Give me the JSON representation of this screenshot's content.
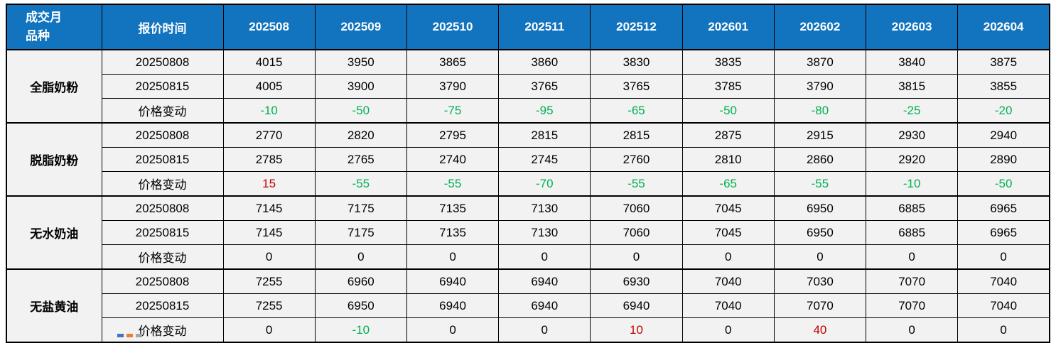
{
  "table": {
    "corner": {
      "line1": "成交月",
      "line2": "品种"
    },
    "quote_time_header": "报价时间",
    "months": [
      "202508",
      "202509",
      "202510",
      "202511",
      "202512",
      "202601",
      "202602",
      "202603",
      "202604"
    ],
    "change_row_label": "价格变动",
    "groups": [
      {
        "name": "全脂奶粉",
        "rows": [
          {
            "label": "20250808",
            "type": "price",
            "values": [
              "4015",
              "3950",
              "3865",
              "3860",
              "3830",
              "3835",
              "3870",
              "3840",
              "3875"
            ]
          },
          {
            "label": "20250815",
            "type": "price",
            "values": [
              "4005",
              "3900",
              "3790",
              "3765",
              "3765",
              "3785",
              "3790",
              "3815",
              "3855"
            ]
          },
          {
            "label": "价格变动",
            "type": "change",
            "values": [
              "-10",
              "-50",
              "-75",
              "-95",
              "-65",
              "-50",
              "-80",
              "-25",
              "-20"
            ]
          }
        ]
      },
      {
        "name": "脱脂奶粉",
        "rows": [
          {
            "label": "20250808",
            "type": "price",
            "values": [
              "2770",
              "2820",
              "2795",
              "2815",
              "2815",
              "2875",
              "2915",
              "2930",
              "2940"
            ]
          },
          {
            "label": "20250815",
            "type": "price",
            "values": [
              "2785",
              "2765",
              "2740",
              "2745",
              "2760",
              "2810",
              "2860",
              "2920",
              "2890"
            ]
          },
          {
            "label": "价格变动",
            "type": "change",
            "values": [
              "15",
              "-55",
              "-55",
              "-70",
              "-55",
              "-65",
              "-55",
              "-10",
              "-50"
            ]
          }
        ]
      },
      {
        "name": "无水奶油",
        "rows": [
          {
            "label": "20250808",
            "type": "price",
            "values": [
              "7145",
              "7175",
              "7135",
              "7130",
              "7060",
              "7045",
              "6950",
              "6885",
              "6965"
            ]
          },
          {
            "label": "20250815",
            "type": "price",
            "values": [
              "7145",
              "7175",
              "7135",
              "7130",
              "7060",
              "7045",
              "6950",
              "6885",
              "6965"
            ]
          },
          {
            "label": "价格变动",
            "type": "change",
            "values": [
              "0",
              "0",
              "0",
              "0",
              "0",
              "0",
              "0",
              "0",
              "0"
            ]
          }
        ]
      },
      {
        "name": "无盐黄油",
        "rows": [
          {
            "label": "20250808",
            "type": "price",
            "values": [
              "7255",
              "6960",
              "6940",
              "6940",
              "6930",
              "7040",
              "7030",
              "7070",
              "7040"
            ]
          },
          {
            "label": "20250815",
            "type": "price",
            "values": [
              "7255",
              "6950",
              "6940",
              "6940",
              "6940",
              "7040",
              "7070",
              "7070",
              "7040"
            ]
          },
          {
            "label": "价格变动",
            "type": "change",
            "values": [
              "0",
              "-10",
              "0",
              "0",
              "10",
              "0",
              "40",
              "0",
              "0"
            ]
          }
        ]
      }
    ],
    "colors": {
      "header_bg": "#1274BE",
      "header_text": "#FFFFFF",
      "body_bg": "#F2F2F2",
      "border": "#000000",
      "change_negative": "#00B050",
      "change_positive": "#C00000",
      "change_zero": "#000000"
    },
    "clipped_sliver_colors": [
      "#4472C4",
      "#ED7D31",
      "#A5A5A5"
    ]
  }
}
